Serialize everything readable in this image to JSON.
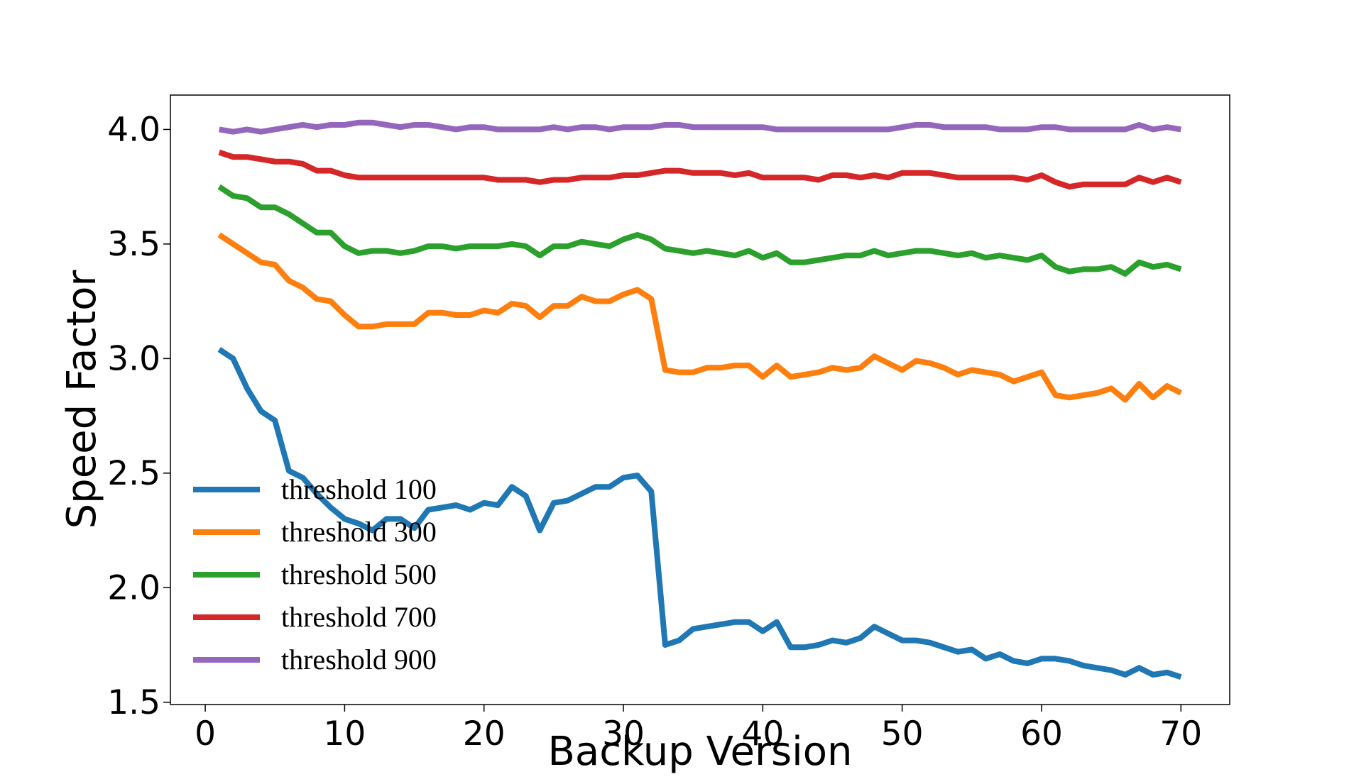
{
  "chart_data": {
    "type": "line",
    "xlabel": "Backup Version",
    "ylabel": "Speed Factor",
    "xlim": [
      -2.5,
      73.5
    ],
    "ylim": [
      1.49,
      4.15
    ],
    "xticks": [
      0,
      10,
      20,
      30,
      40,
      50,
      60,
      70
    ],
    "yticks": [
      1.5,
      2.0,
      2.5,
      3.0,
      3.5,
      4.0
    ],
    "grid": false,
    "legend_position": "lower-left",
    "x": [
      1,
      2,
      3,
      4,
      5,
      6,
      7,
      8,
      9,
      10,
      11,
      12,
      13,
      14,
      15,
      16,
      17,
      18,
      19,
      20,
      21,
      22,
      23,
      24,
      25,
      26,
      27,
      28,
      29,
      30,
      31,
      32,
      33,
      34,
      35,
      36,
      37,
      38,
      39,
      40,
      41,
      42,
      43,
      44,
      45,
      46,
      47,
      48,
      49,
      50,
      51,
      52,
      53,
      54,
      55,
      56,
      57,
      58,
      59,
      60,
      61,
      62,
      63,
      64,
      65,
      66,
      67,
      68,
      69,
      70
    ],
    "series": [
      {
        "name": "threshold 100",
        "color": "#1f77b4",
        "values": [
          3.04,
          3.0,
          2.87,
          2.77,
          2.73,
          2.51,
          2.48,
          2.41,
          2.35,
          2.3,
          2.28,
          2.25,
          2.3,
          2.3,
          2.26,
          2.34,
          2.35,
          2.36,
          2.34,
          2.37,
          2.36,
          2.44,
          2.4,
          2.25,
          2.37,
          2.38,
          2.41,
          2.44,
          2.44,
          2.48,
          2.49,
          2.42,
          1.75,
          1.77,
          1.82,
          1.83,
          1.84,
          1.85,
          1.85,
          1.81,
          1.85,
          1.74,
          1.74,
          1.75,
          1.77,
          1.76,
          1.78,
          1.83,
          1.8,
          1.77,
          1.77,
          1.76,
          1.74,
          1.72,
          1.73,
          1.69,
          1.71,
          1.68,
          1.67,
          1.69,
          1.69,
          1.68,
          1.66,
          1.65,
          1.64,
          1.62,
          1.65,
          1.62,
          1.63,
          1.61
        ]
      },
      {
        "name": "threshold 300",
        "color": "#ff7f0e",
        "values": [
          3.54,
          3.5,
          3.46,
          3.42,
          3.41,
          3.34,
          3.31,
          3.26,
          3.25,
          3.19,
          3.14,
          3.14,
          3.15,
          3.15,
          3.15,
          3.2,
          3.2,
          3.19,
          3.19,
          3.21,
          3.2,
          3.24,
          3.23,
          3.18,
          3.23,
          3.23,
          3.27,
          3.25,
          3.25,
          3.28,
          3.3,
          3.26,
          2.95,
          2.94,
          2.94,
          2.96,
          2.96,
          2.97,
          2.97,
          2.92,
          2.97,
          2.92,
          2.93,
          2.94,
          2.96,
          2.95,
          2.96,
          3.01,
          2.98,
          2.95,
          2.99,
          2.98,
          2.96,
          2.93,
          2.95,
          2.94,
          2.93,
          2.9,
          2.92,
          2.94,
          2.84,
          2.83,
          2.84,
          2.85,
          2.87,
          2.82,
          2.89,
          2.83,
          2.88,
          2.85
        ]
      },
      {
        "name": "threshold 500",
        "color": "#2ca02c",
        "values": [
          3.75,
          3.71,
          3.7,
          3.66,
          3.66,
          3.63,
          3.59,
          3.55,
          3.55,
          3.49,
          3.46,
          3.47,
          3.47,
          3.46,
          3.47,
          3.49,
          3.49,
          3.48,
          3.49,
          3.49,
          3.49,
          3.5,
          3.49,
          3.45,
          3.49,
          3.49,
          3.51,
          3.5,
          3.49,
          3.52,
          3.54,
          3.52,
          3.48,
          3.47,
          3.46,
          3.47,
          3.46,
          3.45,
          3.47,
          3.44,
          3.46,
          3.42,
          3.42,
          3.43,
          3.44,
          3.45,
          3.45,
          3.47,
          3.45,
          3.46,
          3.47,
          3.47,
          3.46,
          3.45,
          3.46,
          3.44,
          3.45,
          3.44,
          3.43,
          3.45,
          3.4,
          3.38,
          3.39,
          3.39,
          3.4,
          3.37,
          3.42,
          3.4,
          3.41,
          3.39
        ]
      },
      {
        "name": "threshold 700",
        "color": "#d62728",
        "values": [
          3.9,
          3.88,
          3.88,
          3.87,
          3.86,
          3.86,
          3.85,
          3.82,
          3.82,
          3.8,
          3.79,
          3.79,
          3.79,
          3.79,
          3.79,
          3.79,
          3.79,
          3.79,
          3.79,
          3.79,
          3.78,
          3.78,
          3.78,
          3.77,
          3.78,
          3.78,
          3.79,
          3.79,
          3.79,
          3.8,
          3.8,
          3.81,
          3.82,
          3.82,
          3.81,
          3.81,
          3.81,
          3.8,
          3.81,
          3.79,
          3.79,
          3.79,
          3.79,
          3.78,
          3.8,
          3.8,
          3.79,
          3.8,
          3.79,
          3.81,
          3.81,
          3.81,
          3.8,
          3.79,
          3.79,
          3.79,
          3.79,
          3.79,
          3.78,
          3.8,
          3.77,
          3.75,
          3.76,
          3.76,
          3.76,
          3.76,
          3.79,
          3.77,
          3.79,
          3.77
        ]
      },
      {
        "name": "threshold 900",
        "color": "#9467bd",
        "values": [
          4.0,
          3.99,
          4.0,
          3.99,
          4.0,
          4.01,
          4.02,
          4.01,
          4.02,
          4.02,
          4.03,
          4.03,
          4.02,
          4.01,
          4.02,
          4.02,
          4.01,
          4.0,
          4.01,
          4.01,
          4.0,
          4.0,
          4.0,
          4.0,
          4.01,
          4.0,
          4.01,
          4.01,
          4.0,
          4.01,
          4.01,
          4.01,
          4.02,
          4.02,
          4.01,
          4.01,
          4.01,
          4.01,
          4.01,
          4.01,
          4.0,
          4.0,
          4.0,
          4.0,
          4.0,
          4.0,
          4.0,
          4.0,
          4.0,
          4.01,
          4.02,
          4.02,
          4.01,
          4.01,
          4.01,
          4.01,
          4.0,
          4.0,
          4.0,
          4.01,
          4.01,
          4.0,
          4.0,
          4.0,
          4.0,
          4.0,
          4.02,
          4.0,
          4.01,
          4.0
        ]
      }
    ]
  }
}
